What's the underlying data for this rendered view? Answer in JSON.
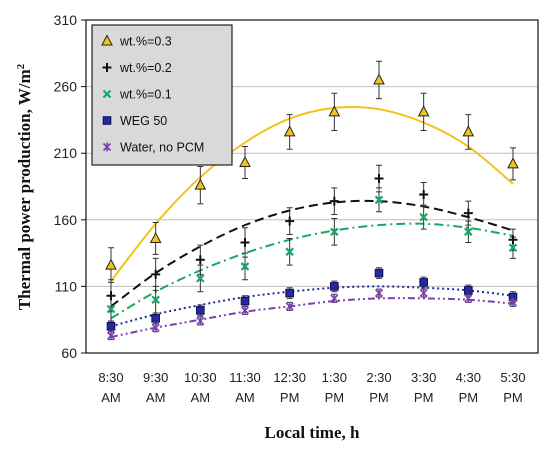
{
  "chart_data": {
    "type": "scatter",
    "title": "",
    "xlabel": "Local time, h",
    "ylabel_main": "Thermal power production, W/m",
    "ylabel_sup": "2",
    "ylim": [
      60,
      310
    ],
    "yticks": [
      60,
      110,
      160,
      210,
      260,
      310
    ],
    "categories": [
      [
        "8:30",
        "AM"
      ],
      [
        "9:30",
        "AM"
      ],
      [
        "10:30",
        "AM"
      ],
      [
        "11:30",
        "AM"
      ],
      [
        "12:30",
        "PM"
      ],
      [
        "1:30",
        "PM"
      ],
      [
        "2:30",
        "PM"
      ],
      [
        "3:30",
        "PM"
      ],
      [
        "4:30",
        "PM"
      ],
      [
        "5:30",
        "PM"
      ]
    ],
    "grid": true,
    "legend_position": "top-left",
    "series": [
      {
        "name": "wt.%=0.3",
        "marker": "triangle",
        "color": "#f2c31b",
        "line_style": "solid",
        "values": [
          126,
          146,
          186,
          203,
          226,
          241,
          265,
          241,
          226,
          202
        ],
        "errors": [
          13,
          12,
          14,
          12,
          13,
          14,
          14,
          14,
          13,
          12
        ],
        "trend": [
          114,
          157,
          192,
          218,
          236,
          244,
          243,
          233,
          215,
          187
        ]
      },
      {
        "name": "wt.%=0.2",
        "marker": "plus",
        "color": "#111111",
        "line_style": "dashed",
        "values": [
          103,
          119,
          130,
          143,
          159,
          174,
          191,
          179,
          165,
          145
        ],
        "errors": [
          12,
          12,
          11,
          11,
          10,
          10,
          10,
          9,
          9,
          8
        ],
        "trend": [
          95,
          120,
          140,
          156,
          167,
          173,
          174,
          170,
          162,
          152
        ]
      },
      {
        "name": "wt.%=0.1",
        "marker": "x",
        "color": "#16a866",
        "line_style": "dashdot",
        "values": [
          93,
          100,
          116,
          125,
          136,
          151,
          175,
          162,
          151,
          139
        ],
        "errors": [
          10,
          10,
          10,
          10,
          10,
          10,
          9,
          9,
          8,
          8
        ],
        "trend": [
          86,
          106,
          122,
          135,
          145,
          152,
          156,
          157,
          154,
          148
        ]
      },
      {
        "name": "WEG 50",
        "marker": "square",
        "color": "#25299f",
        "line_style": "dotted",
        "values": [
          80,
          86,
          92,
          99,
          105,
          110,
          120,
          113,
          107,
          102
        ],
        "errors": [
          4,
          4,
          4,
          4,
          4,
          4,
          4,
          4,
          4,
          4
        ],
        "trend": [
          80,
          89,
          96,
          102,
          106,
          109,
          110,
          109,
          107,
          103
        ]
      },
      {
        "name": "Water, no PCM",
        "marker": "star",
        "color": "#7b3fb0",
        "line_style": "dashdotdot",
        "values": [
          73,
          79,
          84,
          92,
          95,
          101,
          105,
          105,
          101,
          98
        ],
        "errors": [
          3,
          3,
          3,
          3,
          3,
          3,
          3,
          3,
          3,
          3
        ],
        "trend": [
          72,
          79,
          85,
          91,
          95,
          99,
          101,
          101,
          100,
          97
        ]
      }
    ]
  }
}
